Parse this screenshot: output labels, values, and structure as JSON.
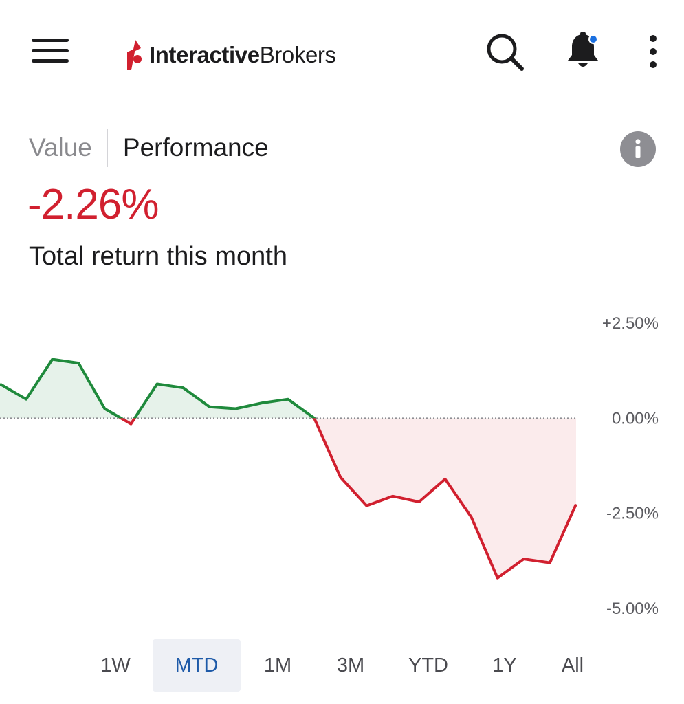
{
  "app": {
    "brand_bold": "Interactive",
    "brand_regular": "Brokers"
  },
  "header": {
    "icons": [
      "menu-icon",
      "search-icon",
      "bell-icon",
      "more-vertical-icon"
    ],
    "notification_dot_color": "#1a6fe0"
  },
  "tabs": [
    {
      "label": "Value",
      "active": false
    },
    {
      "label": "Performance",
      "active": true
    }
  ],
  "summary": {
    "return_value": "-2.26%",
    "caption": "Total return this month",
    "negative_color": "#d1202f",
    "positive_color": "#1f8a3c"
  },
  "chart_data": {
    "type": "area",
    "title": "",
    "xlabel": "",
    "ylabel": "",
    "y_ticks": [
      "+2.50%",
      "0.00%",
      "-2.50%",
      "-5.00%"
    ],
    "ylim": [
      -5.0,
      2.5
    ],
    "baseline": 0.0,
    "grid": false,
    "values": [
      0.9,
      0.5,
      1.55,
      1.45,
      0.25,
      -0.15,
      0.9,
      0.8,
      0.3,
      0.25,
      0.4,
      0.5,
      0.0,
      -1.55,
      -2.3,
      -2.05,
      -2.2,
      -1.6,
      -2.6,
      -4.2,
      -3.7,
      -3.8,
      -2.26
    ]
  },
  "ranges": [
    {
      "label": "1W",
      "active": false
    },
    {
      "label": "MTD",
      "active": true
    },
    {
      "label": "1M",
      "active": false
    },
    {
      "label": "3M",
      "active": false
    },
    {
      "label": "YTD",
      "active": false
    },
    {
      "label": "1Y",
      "active": false
    },
    {
      "label": "All",
      "active": false
    }
  ]
}
